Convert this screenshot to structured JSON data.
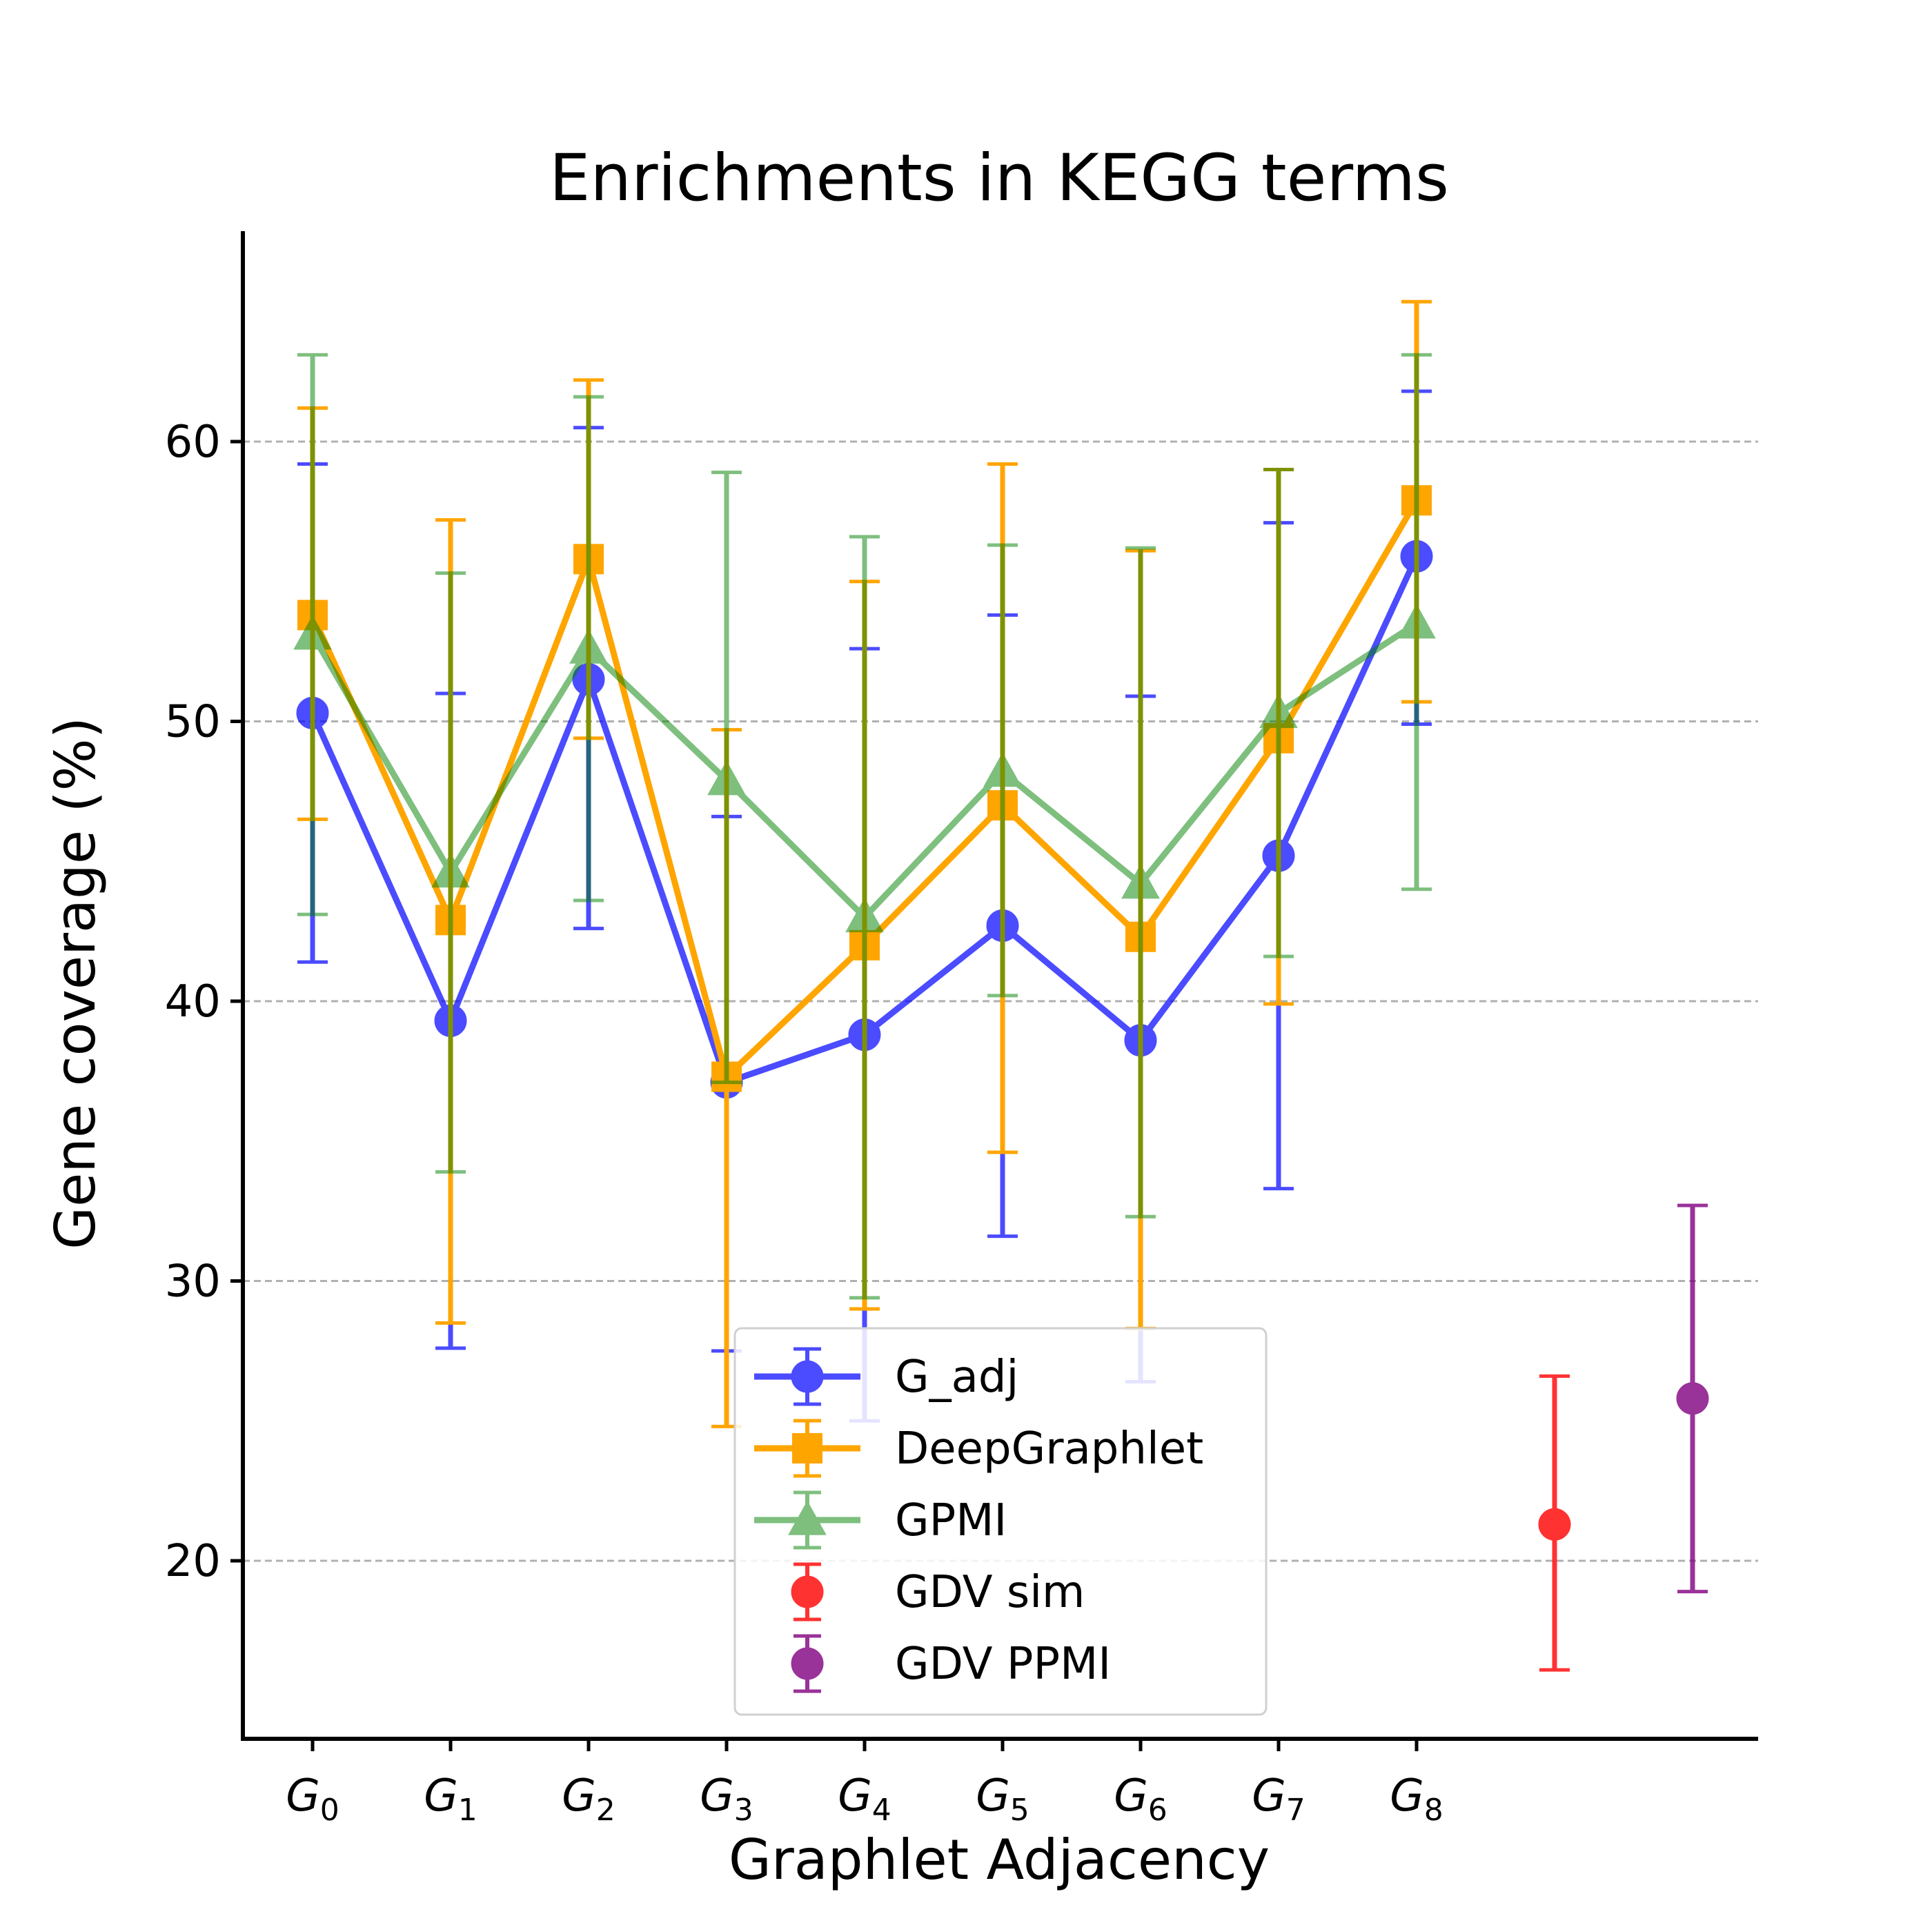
{
  "chart_data": {
    "type": "line",
    "title": "Enrichments in KEGG terms",
    "xlabel": "Graphlet Adjacency",
    "ylabel": "Gene coverage (%)",
    "ylim": [
      14,
      68
    ],
    "yticks": [
      20,
      30,
      40,
      50,
      60
    ],
    "grid": "horizontal dashed",
    "legend_position": "bottom-center",
    "categories": [
      {
        "base": "G",
        "sub": "0"
      },
      {
        "base": "G",
        "sub": "1"
      },
      {
        "base": "G",
        "sub": "2"
      },
      {
        "base": "G",
        "sub": "3"
      },
      {
        "base": "G",
        "sub": "4"
      },
      {
        "base": "G",
        "sub": "5"
      },
      {
        "base": "G",
        "sub": "6"
      },
      {
        "base": "G",
        "sub": "7"
      },
      {
        "base": "G",
        "sub": "8"
      }
    ],
    "series": [
      {
        "name": "G_adj",
        "color": "#0000ff",
        "marker": "circle",
        "line": true,
        "alpha": 0.7,
        "x": [
          0,
          1,
          2,
          3,
          4,
          5,
          6,
          7,
          8
        ],
        "values": [
          50.3,
          39.3,
          51.5,
          37.1,
          38.8,
          42.7,
          38.6,
          45.2,
          55.9
        ],
        "err_low": [
          41.4,
          27.6,
          42.6,
          27.5,
          25.0,
          31.6,
          26.4,
          33.3,
          49.9
        ],
        "err_high": [
          59.2,
          51.0,
          60.5,
          46.6,
          52.6,
          53.8,
          50.9,
          57.1,
          61.8
        ]
      },
      {
        "name": "DeepGraphlet",
        "color": "#ffa500",
        "marker": "square",
        "line": true,
        "alpha": 1.0,
        "x": [
          0,
          1,
          2,
          3,
          4,
          5,
          6,
          7,
          8
        ],
        "values": [
          53.8,
          42.9,
          55.8,
          37.3,
          42.0,
          47.0,
          42.3,
          49.4,
          57.9
        ],
        "err_low": [
          46.5,
          28.5,
          49.4,
          24.8,
          29.0,
          34.6,
          28.3,
          39.9,
          50.7
        ],
        "err_high": [
          61.2,
          57.2,
          62.2,
          49.7,
          55.0,
          59.2,
          56.1,
          59.0,
          65.0
        ]
      },
      {
        "name": "GPMI",
        "color": "#008000",
        "marker": "triangle",
        "line": true,
        "alpha": 0.5,
        "x": [
          0,
          1,
          2,
          3,
          4,
          5,
          6,
          7,
          8
        ],
        "values": [
          53.1,
          44.6,
          52.6,
          47.9,
          43.0,
          48.2,
          44.2,
          50.3,
          53.5
        ],
        "err_low": [
          43.1,
          33.9,
          43.6,
          37.1,
          29.4,
          40.2,
          32.3,
          41.6,
          44.0
        ],
        "err_high": [
          63.1,
          55.3,
          61.6,
          58.9,
          56.6,
          56.3,
          56.2,
          59.0,
          63.1
        ]
      },
      {
        "name": "GDV sim",
        "color": "#ff0000",
        "marker": "circle",
        "line": false,
        "alpha": 0.8,
        "x": [
          9.0
        ],
        "values": [
          21.3
        ],
        "err_low": [
          16.1
        ],
        "err_high": [
          26.6
        ]
      },
      {
        "name": "GDV PPMI",
        "color": "#800080",
        "marker": "circle",
        "line": false,
        "alpha": 0.8,
        "x": [
          10.0
        ],
        "values": [
          25.8
        ],
        "err_low": [
          18.9
        ],
        "err_high": [
          32.7
        ]
      }
    ]
  }
}
